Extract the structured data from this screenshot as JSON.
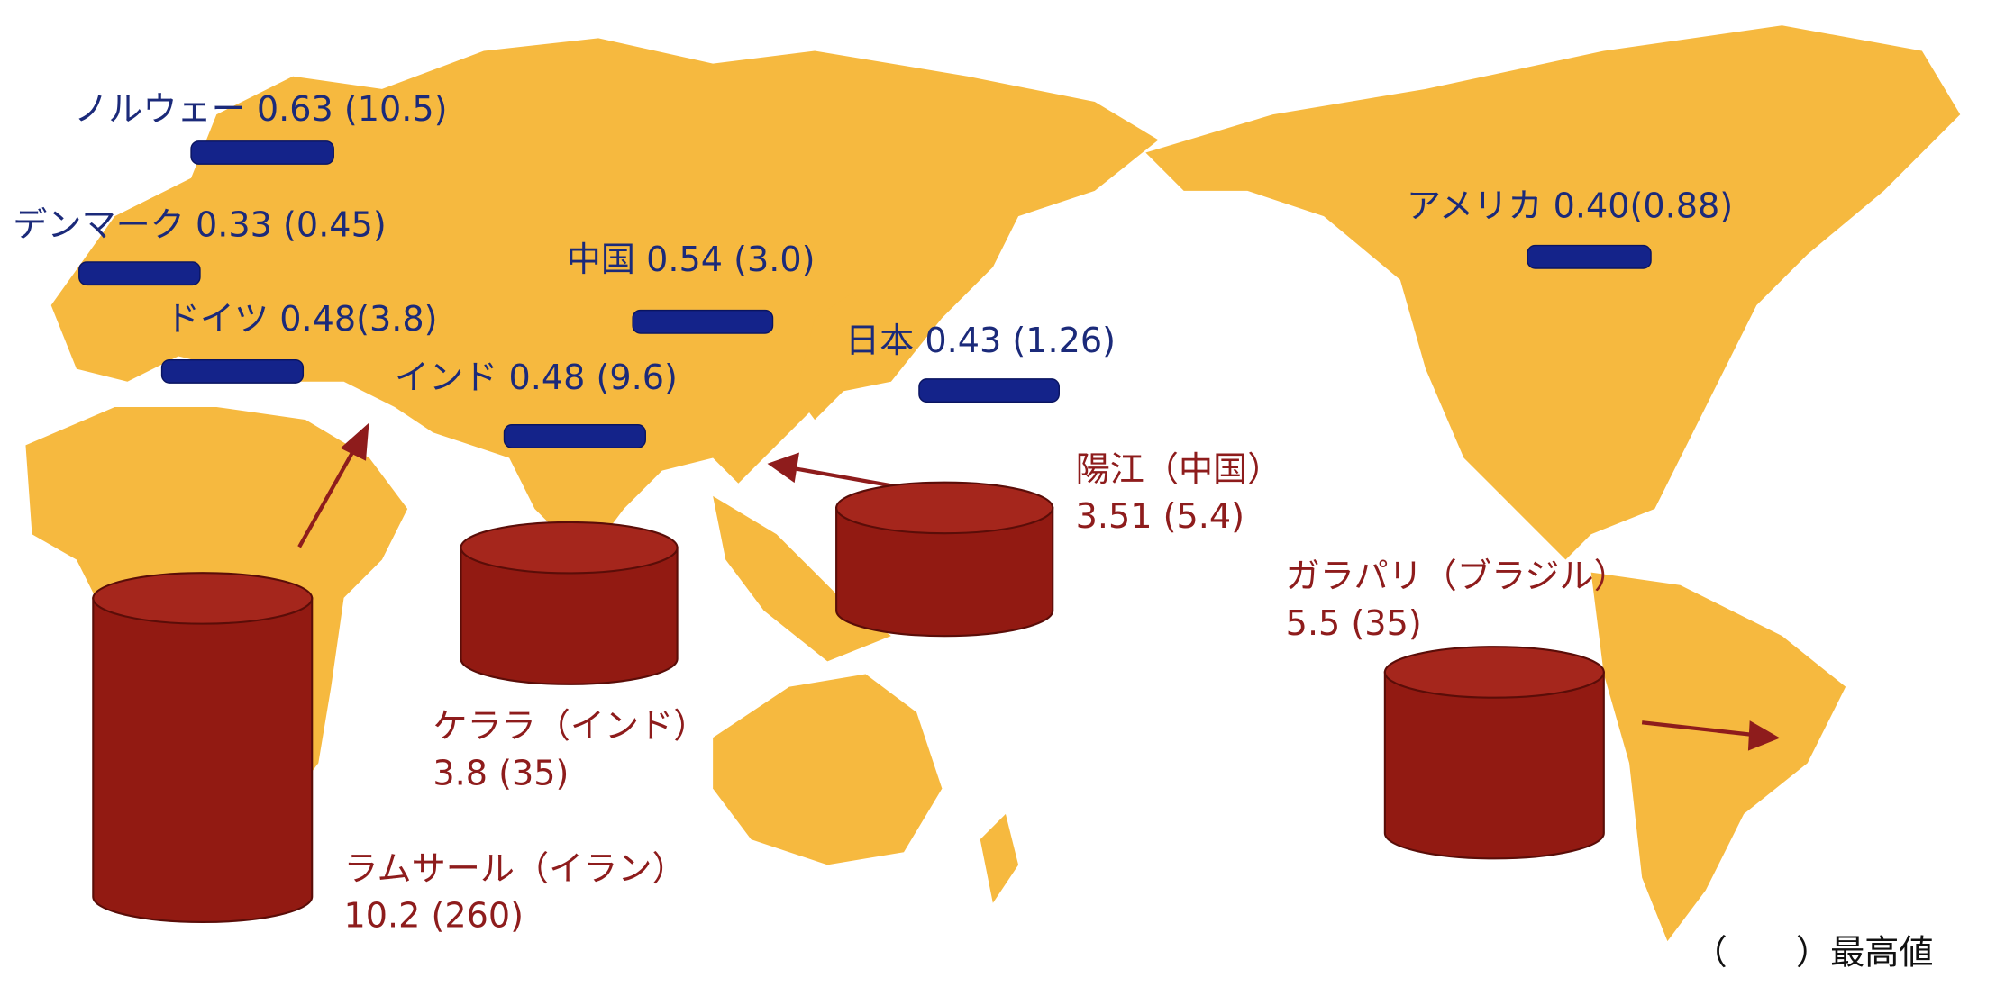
{
  "sites": [
    {
      "label": "ノルウェー 0.63 (10.5)"
    },
    {
      "label": "デンマーク 0.33 (0.45)"
    },
    {
      "label": "ドイツ 0.48(3.8)"
    },
    {
      "label": "中国 0.54 (3.0)"
    },
    {
      "label": "インド 0.48 (9.6)"
    },
    {
      "label": "日本 0.43 (1.26)"
    },
    {
      "label": "アメリカ 0.40(0.88)"
    }
  ],
  "high_areas": [
    {
      "name": "陽江（中国）",
      "figures": "3.51 (5.4)",
      "value": 3.51
    },
    {
      "name": "ガラパリ（ブラジル）",
      "figures": "5.5  (35)",
      "value": 5.5
    },
    {
      "name": "ケララ（インド）",
      "figures": "3.8 (35)",
      "value": 3.8
    },
    {
      "name": "ラムサール（イラン）",
      "figures": "10.2 (260)",
      "value": 10.2
    }
  ],
  "legend": "（　　）最高値"
}
